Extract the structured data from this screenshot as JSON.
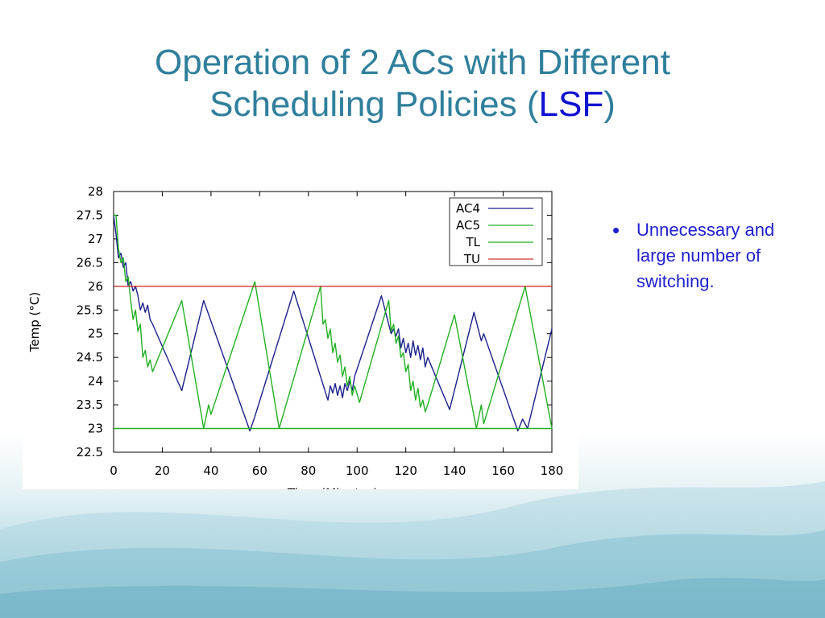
{
  "slide": {
    "title_main": "Operation of 2 ACs with Different Scheduling Policies (",
    "title_accent": "LSF",
    "title_close": ")",
    "bullets": [
      "Unnecessary and large number of switching."
    ],
    "colors": {
      "title": "#2f7f9c",
      "accent": "#1010d0",
      "bullet": "#1f1fd0"
    }
  },
  "chart_data": {
    "type": "line",
    "title": "",
    "xlabel": "Time (Minutes)",
    "ylabel": "Temp (°C)",
    "xlim": [
      0,
      180
    ],
    "ylim": [
      22.5,
      28
    ],
    "xticks": [
      0,
      20,
      40,
      60,
      80,
      100,
      120,
      140,
      160,
      180
    ],
    "yticks": [
      22.5,
      23,
      23.5,
      24,
      24.5,
      25,
      25.5,
      26,
      26.5,
      27,
      27.5,
      28
    ],
    "grid": false,
    "legend_position": "top-right",
    "series": [
      {
        "name": "AC4",
        "color": "#1b1f8a",
        "x": [
          0,
          1,
          2,
          3,
          4,
          5,
          6,
          7,
          8,
          9,
          10,
          11,
          12,
          13,
          14,
          15,
          16,
          28,
          37,
          56,
          58,
          74,
          88,
          89,
          90,
          91,
          92,
          93,
          94,
          95,
          96,
          97,
          98,
          99,
          110,
          114,
          115,
          116,
          117,
          118,
          119,
          120,
          121,
          122,
          123,
          124,
          125,
          126,
          127,
          128,
          129,
          138,
          148,
          151,
          152,
          166,
          168,
          170,
          180
        ],
        "values": [
          27.5,
          27.1,
          26.6,
          26.7,
          26.4,
          26.5,
          26.0,
          26.1,
          25.9,
          26.0,
          25.8,
          25.5,
          25.65,
          25.45,
          25.6,
          25.3,
          25.2,
          23.8,
          25.7,
          22.95,
          23.25,
          25.9,
          23.6,
          23.9,
          23.75,
          23.95,
          23.7,
          23.9,
          23.65,
          23.95,
          23.8,
          24.0,
          23.8,
          24.1,
          25.8,
          25.0,
          25.1,
          24.95,
          25.1,
          24.7,
          24.9,
          24.6,
          24.8,
          24.5,
          24.85,
          24.55,
          24.75,
          24.45,
          24.7,
          24.3,
          24.5,
          23.4,
          25.45,
          24.85,
          25.0,
          22.95,
          23.2,
          23.0,
          25.1
        ]
      },
      {
        "name": "AC5",
        "color": "#22b022",
        "x": [
          0,
          1,
          2,
          3,
          4,
          5,
          6,
          7,
          8,
          9,
          10,
          11,
          12,
          13,
          14,
          15,
          16,
          28,
          37,
          39,
          40,
          58,
          68,
          85,
          86,
          87,
          88,
          89,
          90,
          91,
          92,
          93,
          94,
          95,
          96,
          97,
          98,
          99,
          101,
          113,
          114,
          115,
          116,
          117,
          118,
          119,
          120,
          121,
          122,
          123,
          124,
          125,
          126,
          127,
          128,
          129,
          140,
          149,
          151,
          152,
          169,
          180
        ],
        "values": [
          27.5,
          27.5,
          26.8,
          26.5,
          26.6,
          26.1,
          26.2,
          25.7,
          25.3,
          25.5,
          25.05,
          25.2,
          24.5,
          24.65,
          24.3,
          24.45,
          24.2,
          25.7,
          23.0,
          23.5,
          23.3,
          26.1,
          23.0,
          26.0,
          25.2,
          25.3,
          24.9,
          25.1,
          24.6,
          24.8,
          24.4,
          24.55,
          24.1,
          24.3,
          23.9,
          24.1,
          23.7,
          23.9,
          23.55,
          25.7,
          25.05,
          25.2,
          24.8,
          24.95,
          24.5,
          24.6,
          24.2,
          24.35,
          23.8,
          24.0,
          23.6,
          23.85,
          23.45,
          23.6,
          23.35,
          23.5,
          25.4,
          23.0,
          23.5,
          23.1,
          26.0,
          23.0
        ]
      },
      {
        "name": "TL",
        "color": "#22b022",
        "x": [
          0,
          180
        ],
        "values": [
          23,
          23
        ]
      },
      {
        "name": "TU",
        "color": "#d03030",
        "x": [
          0,
          180
        ],
        "values": [
          26,
          26
        ]
      }
    ]
  }
}
